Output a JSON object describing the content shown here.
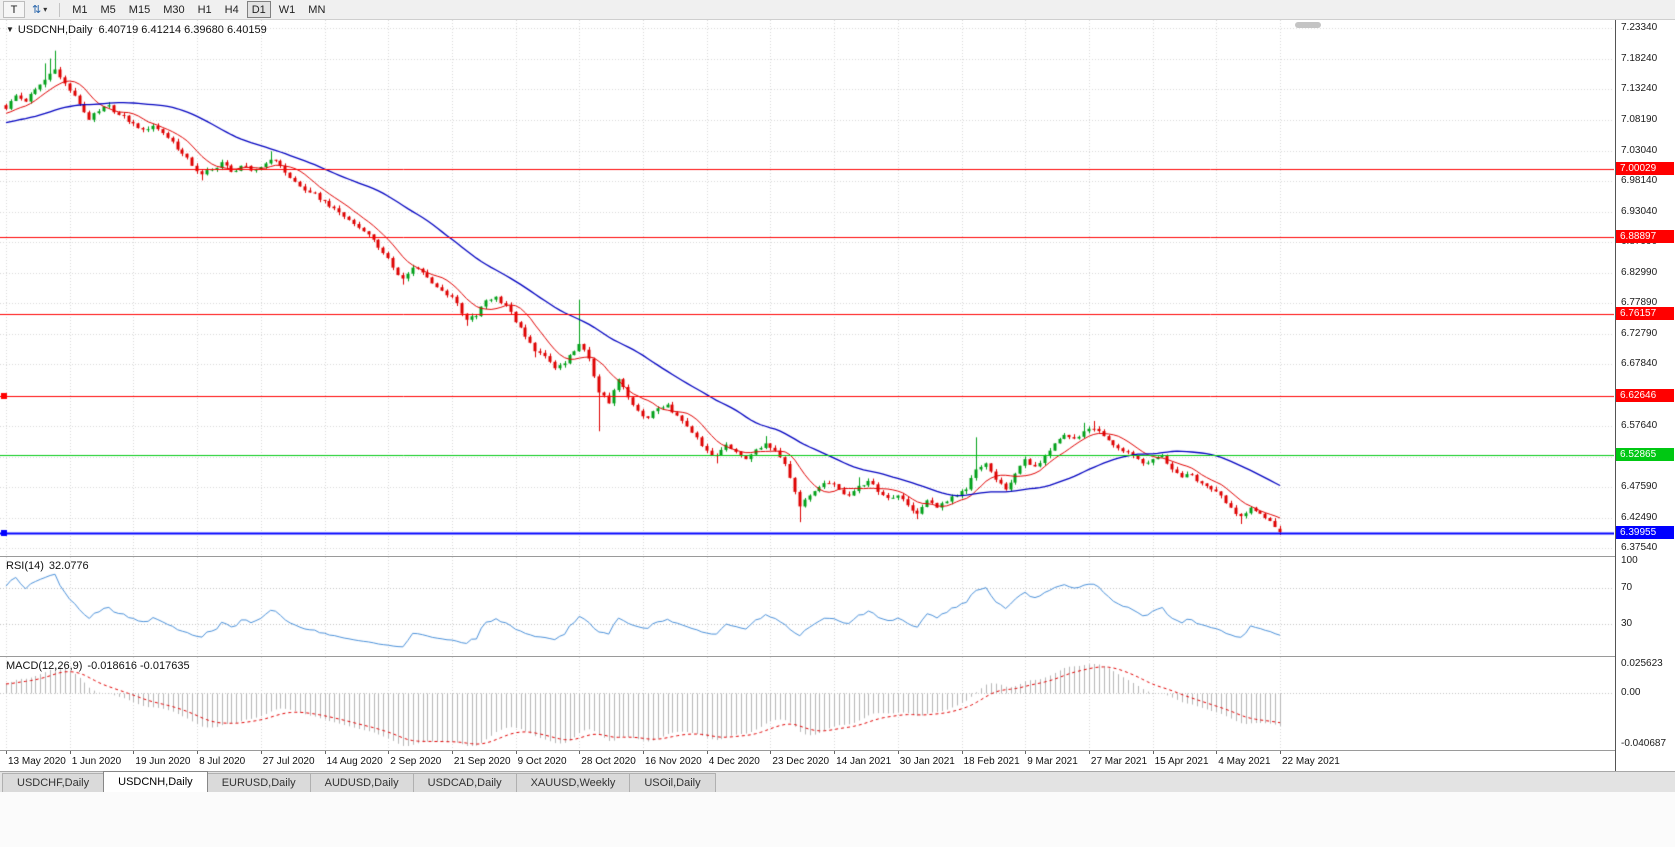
{
  "icons": {
    "tool_text": "T",
    "tool_arrows": "⇅",
    "dropdown_caret": "▾",
    "chart_menu": "▼"
  },
  "toolbar": {
    "timeframes": [
      "M1",
      "M5",
      "M15",
      "M30",
      "H1",
      "H4",
      "D1",
      "W1",
      "MN"
    ],
    "active_timeframe": "D1"
  },
  "chart": {
    "title": "USDCNH,Daily",
    "ohlc_text": "6.40719 6.41214 6.39680 6.40159",
    "price_ticks": [
      "7.23340",
      "7.18240",
      "7.13240",
      "7.08190",
      "7.03040",
      "6.98140",
      "6.93040",
      "6.87990",
      "6.82990",
      "6.77890",
      "6.72790",
      "6.67840",
      "6.62640",
      "6.57640",
      "6.52540",
      "6.47590",
      "6.42490",
      "6.37540"
    ],
    "hlines": [
      {
        "price": 7.00029,
        "label": "7.00029",
        "color": "#FF0000",
        "width": 1,
        "handle": false
      },
      {
        "price": 6.88897,
        "label": "6.88897",
        "color": "#FF0000",
        "width": 1,
        "handle": false
      },
      {
        "price": 6.76157,
        "label": "6.76157",
        "color": "#FF0000",
        "width": 1,
        "handle": false
      },
      {
        "price": 6.62646,
        "label": "6.62646",
        "color": "#FF0000",
        "width": 1,
        "handle": true
      },
      {
        "price": 6.52865,
        "label": "6.52865",
        "color": "#00C813",
        "width": 1,
        "handle": false
      },
      {
        "price": 6.39955,
        "label": "6.39955",
        "color": "#0000FF",
        "width": 2,
        "handle": true
      }
    ]
  },
  "rsi": {
    "label": "RSI(14)",
    "value": "32.0776",
    "axis_ticks": [
      "100",
      "70",
      "30"
    ],
    "levels": [
      70,
      30
    ]
  },
  "macd": {
    "label": "MACD(12,26,9)",
    "values": "-0.018616 -0.017635",
    "axis_max": "0.025623",
    "axis_zero": "0.00",
    "axis_min": "-0.040687"
  },
  "time_axis": [
    "13 May 2020",
    "1 Jun 2020",
    "19 Jun 2020",
    "8 Jul 2020",
    "27 Jul 2020",
    "14 Aug 2020",
    "2 Sep 2020",
    "21 Sep 2020",
    "9 Oct 2020",
    "28 Oct 2020",
    "16 Nov 2020",
    "4 Dec 2020",
    "23 Dec 2020",
    "14 Jan 2021",
    "30 Jan 2021",
    "18 Feb 2021",
    "9 Mar 2021",
    "27 Mar 2021",
    "15 Apr 2021",
    "4 May 2021",
    "22 May 2021"
  ],
  "tabs": {
    "items": [
      "USDCHF,Daily",
      "USDCNH,Daily",
      "EURUSD,Daily",
      "AUDUSD,Daily",
      "USDCAD,Daily",
      "XAUUSD,Weekly",
      "USOil,Daily"
    ],
    "active": "USDCNH,Daily"
  },
  "colors": {
    "up_candle": "#00A019",
    "down_candle": "#DE0000",
    "ma_fast": "#E00000",
    "ma_slow": "#0000C0",
    "rsi_line": "#4A90D9",
    "macd_hist": "#B6B6B6",
    "macd_signal": "#E00000",
    "grid": "#D6D6D6",
    "level_dotted": "#C0C0C0"
  },
  "chart_data": {
    "type": "candlestick",
    "symbol": "USDCNH",
    "period": "Daily",
    "last_candle": {
      "open": 6.40719,
      "high": 6.41214,
      "low": 6.3968,
      "close": 6.40159
    },
    "candle_count": 261,
    "candles_per_time_label": 13,
    "ylim": [
      6.3754,
      7.2334
    ],
    "indicators": {
      "rsi": {
        "period": 14,
        "current": 32.0776,
        "levels": [
          30,
          70
        ]
      },
      "macd": {
        "fast": 12,
        "slow": 26,
        "signal": 9,
        "current_main": -0.018616,
        "current_signal": -0.017635,
        "scale": [
          -0.040687,
          0.025623
        ]
      },
      "ma_fast_period": 8,
      "ma_slow_period": 34
    },
    "price_anchors": [
      [
        0,
        7.1,
        null,
        null
      ],
      [
        2,
        7.122,
        null,
        null
      ],
      [
        4,
        7.112,
        null,
        null
      ],
      [
        6,
        7.132,
        null,
        null
      ],
      [
        8,
        7.148,
        null,
        7.175
      ],
      [
        9,
        7.158,
        null,
        7.183
      ],
      [
        10,
        7.165,
        null,
        7.196
      ],
      [
        11,
        7.152,
        null,
        null
      ],
      [
        13,
        7.13,
        null,
        null
      ],
      [
        15,
        7.108,
        null,
        null
      ],
      [
        17,
        7.082,
        null,
        null
      ],
      [
        19,
        7.096,
        null,
        null
      ],
      [
        21,
        7.106,
        null,
        null
      ],
      [
        23,
        7.09,
        null,
        null
      ],
      [
        26,
        7.076,
        null,
        null
      ],
      [
        28,
        7.066,
        null,
        null
      ],
      [
        30,
        7.072,
        null,
        null
      ],
      [
        32,
        7.06,
        null,
        null
      ],
      [
        34,
        7.046,
        null,
        null
      ],
      [
        36,
        7.026,
        null,
        null
      ],
      [
        38,
        7.006,
        null,
        null
      ],
      [
        40,
        6.992,
        6.982,
        null
      ],
      [
        42,
        7.0,
        null,
        null
      ],
      [
        44,
        7.012,
        null,
        null
      ],
      [
        46,
        6.996,
        null,
        null
      ],
      [
        48,
        7.006,
        null,
        null
      ],
      [
        50,
        6.998,
        null,
        null
      ],
      [
        52,
        7.004,
        null,
        null
      ],
      [
        54,
        7.016,
        null,
        7.03
      ],
      [
        56,
        7.006,
        null,
        null
      ],
      [
        58,
        6.986,
        null,
        null
      ],
      [
        60,
        6.972,
        null,
        null
      ],
      [
        62,
        6.962,
        null,
        null
      ],
      [
        65,
        6.948,
        null,
        null
      ],
      [
        67,
        6.936,
        null,
        null
      ],
      [
        69,
        6.922,
        null,
        null
      ],
      [
        71,
        6.91,
        null,
        null
      ],
      [
        73,
        6.898,
        null,
        null
      ],
      [
        75,
        6.884,
        null,
        null
      ],
      [
        77,
        6.862,
        null,
        null
      ],
      [
        79,
        6.838,
        null,
        null
      ],
      [
        81,
        6.82,
        6.81,
        null
      ],
      [
        83,
        6.838,
        null,
        null
      ],
      [
        85,
        6.83,
        null,
        null
      ],
      [
        87,
        6.812,
        null,
        null
      ],
      [
        89,
        6.8,
        null,
        null
      ],
      [
        91,
        6.79,
        null,
        null
      ],
      [
        93,
        6.762,
        null,
        null
      ],
      [
        94,
        6.752,
        6.742,
        null
      ],
      [
        96,
        6.758,
        null,
        null
      ],
      [
        98,
        6.784,
        null,
        null
      ],
      [
        100,
        6.79,
        null,
        null
      ],
      [
        102,
        6.776,
        null,
        null
      ],
      [
        104,
        6.748,
        null,
        null
      ],
      [
        106,
        6.724,
        null,
        null
      ],
      [
        108,
        6.7,
        6.69,
        null
      ],
      [
        110,
        6.692,
        null,
        null
      ],
      [
        112,
        6.672,
        null,
        null
      ],
      [
        114,
        6.68,
        null,
        null
      ],
      [
        116,
        6.7,
        null,
        null
      ],
      [
        117,
        6.712,
        null,
        6.785
      ],
      [
        119,
        6.688,
        null,
        null
      ],
      [
        121,
        6.632,
        6.568,
        null
      ],
      [
        123,
        6.614,
        null,
        null
      ],
      [
        125,
        6.654,
        null,
        null
      ],
      [
        127,
        6.624,
        null,
        null
      ],
      [
        129,
        6.602,
        null,
        null
      ],
      [
        131,
        6.59,
        null,
        null
      ],
      [
        133,
        6.606,
        null,
        null
      ],
      [
        135,
        6.612,
        null,
        null
      ],
      [
        137,
        6.594,
        null,
        null
      ],
      [
        139,
        6.576,
        null,
        null
      ],
      [
        141,
        6.558,
        null,
        null
      ],
      [
        143,
        6.536,
        null,
        null
      ],
      [
        145,
        6.528,
        6.515,
        null
      ],
      [
        147,
        6.546,
        null,
        null
      ],
      [
        149,
        6.534,
        null,
        null
      ],
      [
        151,
        6.522,
        null,
        null
      ],
      [
        153,
        6.538,
        null,
        null
      ],
      [
        155,
        6.548,
        null,
        6.56
      ],
      [
        157,
        6.536,
        null,
        null
      ],
      [
        159,
        6.514,
        null,
        null
      ],
      [
        161,
        6.468,
        null,
        null
      ],
      [
        162,
        6.444,
        6.418,
        null
      ],
      [
        164,
        6.462,
        null,
        null
      ],
      [
        166,
        6.476,
        null,
        null
      ],
      [
        168,
        6.482,
        null,
        null
      ],
      [
        170,
        6.472,
        null,
        null
      ],
      [
        172,
        6.462,
        null,
        null
      ],
      [
        174,
        6.478,
        null,
        6.492
      ],
      [
        176,
        6.486,
        null,
        null
      ],
      [
        178,
        6.468,
        null,
        null
      ],
      [
        180,
        6.458,
        null,
        null
      ],
      [
        182,
        6.462,
        null,
        null
      ],
      [
        184,
        6.446,
        null,
        null
      ],
      [
        186,
        6.432,
        6.423,
        null
      ],
      [
        188,
        6.454,
        null,
        null
      ],
      [
        190,
        6.442,
        null,
        null
      ],
      [
        192,
        6.452,
        null,
        null
      ],
      [
        194,
        6.462,
        null,
        null
      ],
      [
        196,
        6.472,
        null,
        null
      ],
      [
        198,
        6.505,
        null,
        6.558
      ],
      [
        200,
        6.515,
        null,
        null
      ],
      [
        202,
        6.488,
        null,
        null
      ],
      [
        204,
        6.472,
        null,
        null
      ],
      [
        206,
        6.498,
        null,
        null
      ],
      [
        208,
        6.522,
        null,
        null
      ],
      [
        210,
        6.51,
        null,
        null
      ],
      [
        212,
        6.528,
        null,
        null
      ],
      [
        214,
        6.548,
        null,
        null
      ],
      [
        216,
        6.562,
        null,
        null
      ],
      [
        218,
        6.556,
        null,
        null
      ],
      [
        220,
        6.568,
        null,
        6.582
      ],
      [
        222,
        6.572,
        null,
        6.585
      ],
      [
        224,
        6.56,
        null,
        null
      ],
      [
        226,
        6.545,
        null,
        null
      ],
      [
        228,
        6.535,
        null,
        null
      ],
      [
        230,
        6.528,
        null,
        null
      ],
      [
        232,
        6.515,
        null,
        null
      ],
      [
        234,
        6.522,
        null,
        null
      ],
      [
        236,
        6.528,
        null,
        null
      ],
      [
        238,
        6.505,
        null,
        null
      ],
      [
        240,
        6.492,
        null,
        null
      ],
      [
        242,
        6.496,
        null,
        null
      ],
      [
        244,
        6.482,
        null,
        null
      ],
      [
        246,
        6.472,
        null,
        null
      ],
      [
        248,
        6.462,
        null,
        null
      ],
      [
        250,
        6.442,
        null,
        null
      ],
      [
        252,
        6.428,
        6.415,
        null
      ],
      [
        254,
        6.442,
        null,
        null
      ],
      [
        256,
        6.432,
        null,
        null
      ],
      [
        258,
        6.42,
        null,
        null
      ],
      [
        259,
        6.41,
        null,
        null
      ],
      [
        260,
        6.4016,
        6.3968,
        6.4121
      ]
    ]
  }
}
